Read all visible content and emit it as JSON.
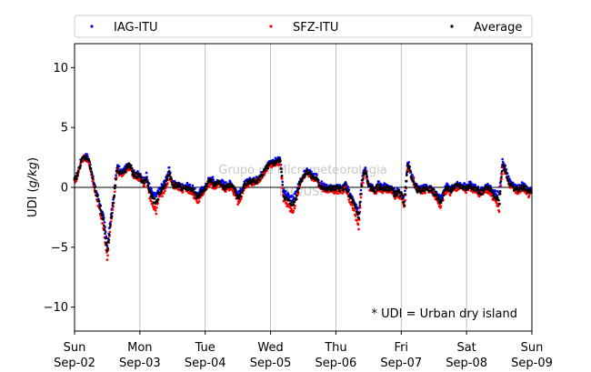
{
  "chart_data": {
    "type": "scatter",
    "xlabel": "",
    "ylabel": "UDI (g/kg)",
    "ylabel_parts": [
      "UDI (",
      "g/kg",
      ")"
    ],
    "xlim": [
      0,
      7
    ],
    "ylim": [
      -12,
      12
    ],
    "yticks": [
      -10,
      -5,
      0,
      5,
      10
    ],
    "xtick_labels": [
      [
        "Sun",
        "Sep-02"
      ],
      [
        "Mon",
        "Sep-03"
      ],
      [
        "Tue",
        "Sep-04"
      ],
      [
        "Wed",
        "Sep-05"
      ],
      [
        "Thu",
        "Sep-06"
      ],
      [
        "Fri",
        "Sep-07"
      ],
      [
        "Sat",
        "Sep-08"
      ],
      [
        "Sun",
        "Sep-09"
      ]
    ],
    "grid": "vertical",
    "zero_line": true,
    "legend_placement": "top",
    "annotation": "* UDI = Urban dry island",
    "watermark": [
      "Grupo de Micrometeorologia",
      "IAG/USP"
    ],
    "series": [
      {
        "name": "IAG-ITU",
        "color": "#0000ff",
        "x": [
          0.0,
          0.05,
          0.1,
          0.15,
          0.2,
          0.25,
          0.3,
          0.35,
          0.4,
          0.45,
          0.5,
          0.55,
          0.6,
          0.65,
          0.7,
          0.75,
          0.8,
          0.85,
          0.9,
          0.95,
          1.0,
          1.05,
          1.1,
          1.15,
          1.2,
          1.25,
          1.3,
          1.35,
          1.4,
          1.45,
          1.5,
          1.55,
          1.6,
          1.65,
          1.7,
          1.75,
          1.8,
          1.85,
          1.9,
          1.95,
          2.0,
          2.05,
          2.1,
          2.15,
          2.2,
          2.25,
          2.3,
          2.35,
          2.4,
          2.45,
          2.5,
          2.55,
          2.6,
          2.65,
          2.7,
          2.75,
          2.8,
          2.85,
          2.9,
          2.95,
          3.0,
          3.05,
          3.1,
          3.15,
          3.2,
          3.25,
          3.3,
          3.35,
          3.4,
          3.45,
          3.5,
          3.55,
          3.6,
          3.65,
          3.7,
          3.75,
          3.8,
          3.85,
          3.9,
          3.95,
          4.0,
          4.05,
          4.1,
          4.15,
          4.2,
          4.25,
          4.3,
          4.35,
          4.4,
          4.45,
          4.5,
          4.55,
          4.6,
          4.65,
          4.7,
          4.75,
          4.8,
          4.85,
          4.9,
          4.95,
          5.0,
          5.05,
          5.1,
          5.15,
          5.2,
          5.25,
          5.3,
          5.35,
          5.4,
          5.45,
          5.5,
          5.55,
          5.6,
          5.65,
          5.7,
          5.75,
          5.8,
          5.85,
          5.9,
          5.95,
          6.0,
          6.05,
          6.1,
          6.15,
          6.2,
          6.25,
          6.3,
          6.35,
          6.4,
          6.45,
          6.5,
          6.55,
          6.6,
          6.65,
          6.7,
          6.75,
          6.8,
          6.85,
          6.9,
          6.95,
          7.0
        ],
        "y": [
          0.6,
          1.2,
          2.3,
          2.6,
          2.6,
          1.7,
          0.2,
          -0.6,
          -1.6,
          -2.7,
          -4.8,
          -2.8,
          -0.6,
          1.8,
          1.4,
          1.3,
          1.8,
          2.0,
          1.2,
          1.2,
          1.0,
          0.6,
          1.0,
          0.0,
          -0.6,
          -0.7,
          -0.2,
          0.2,
          0.7,
          1.6,
          0.3,
          0.3,
          0.2,
          0.1,
          0.2,
          0.1,
          0.0,
          -0.4,
          -0.6,
          -0.1,
          0.0,
          0.6,
          0.8,
          0.4,
          0.5,
          0.5,
          0.2,
          0.4,
          0.3,
          0.0,
          -0.6,
          -0.3,
          0.3,
          0.5,
          0.6,
          0.6,
          0.7,
          1.0,
          1.5,
          1.9,
          2.1,
          2.2,
          2.4,
          2.4,
          -0.4,
          -0.6,
          -0.9,
          -0.9,
          -0.3,
          0.6,
          1.0,
          1.4,
          1.3,
          0.9,
          0.9,
          0.4,
          0.2,
          0.0,
          0.0,
          0.0,
          0.0,
          0.0,
          0.0,
          0.3,
          -0.4,
          -0.7,
          -1.3,
          -2.0,
          0.8,
          1.6,
          0.3,
          0.1,
          -0.2,
          0.3,
          0.0,
          0.2,
          0.0,
          0.0,
          -0.4,
          -0.2,
          -0.5,
          -1.0,
          2.2,
          1.3,
          0.5,
          0.0,
          -0.1,
          0.0,
          0.1,
          0.0,
          -0.3,
          -0.6,
          -0.9,
          -0.3,
          0.1,
          -0.2,
          0.1,
          0.2,
          0.3,
          0.2,
          0.0,
          0.3,
          0.1,
          0.0,
          -0.2,
          -0.2,
          0.2,
          0.0,
          -0.3,
          -0.5,
          -0.5,
          2.2,
          1.5,
          0.6,
          0.2,
          0.0,
          0.0,
          0.2,
          0.0,
          -0.3,
          -0.2
        ]
      },
      {
        "name": "SFZ-ITU",
        "color": "#ff0000",
        "x": [
          0.0,
          0.05,
          0.1,
          0.15,
          0.2,
          0.25,
          0.3,
          0.35,
          0.4,
          0.45,
          0.5,
          0.55,
          0.6,
          0.65,
          0.7,
          0.75,
          0.8,
          0.85,
          0.9,
          0.95,
          1.0,
          1.05,
          1.1,
          1.15,
          1.2,
          1.25,
          1.3,
          1.35,
          1.4,
          1.45,
          1.5,
          1.55,
          1.6,
          1.65,
          1.7,
          1.75,
          1.8,
          1.85,
          1.9,
          1.95,
          2.0,
          2.05,
          2.1,
          2.15,
          2.2,
          2.25,
          2.3,
          2.35,
          2.4,
          2.45,
          2.5,
          2.55,
          2.6,
          2.65,
          2.7,
          2.75,
          2.8,
          2.85,
          2.9,
          2.95,
          3.0,
          3.05,
          3.1,
          3.15,
          3.2,
          3.25,
          3.3,
          3.35,
          3.4,
          3.45,
          3.5,
          3.55,
          3.6,
          3.65,
          3.7,
          3.75,
          3.8,
          3.85,
          3.9,
          3.95,
          4.0,
          4.05,
          4.1,
          4.15,
          4.2,
          4.25,
          4.3,
          4.35,
          4.4,
          4.45,
          4.5,
          4.55,
          4.6,
          4.65,
          4.7,
          4.75,
          4.8,
          4.85,
          4.9,
          4.95,
          5.0,
          5.05,
          5.1,
          5.15,
          5.2,
          5.25,
          5.3,
          5.35,
          5.4,
          5.45,
          5.5,
          5.55,
          5.6,
          5.65,
          5.7,
          5.75,
          5.8,
          5.85,
          5.9,
          5.95,
          6.0,
          6.05,
          6.1,
          6.15,
          6.2,
          6.25,
          6.3,
          6.35,
          6.4,
          6.45,
          6.5,
          6.55,
          6.6,
          6.65,
          6.7,
          6.75,
          6.8,
          6.85,
          6.9,
          6.95,
          7.0
        ],
        "y": [
          0.4,
          1.0,
          2.2,
          2.5,
          2.3,
          1.4,
          -0.1,
          -1.2,
          -2.2,
          -3.6,
          -6.0,
          -3.4,
          -1.2,
          1.4,
          1.1,
          1.1,
          1.5,
          1.7,
          1.0,
          0.9,
          0.7,
          0.2,
          0.5,
          -0.7,
          -1.5,
          -2.0,
          -0.7,
          -0.5,
          0.1,
          1.0,
          0.1,
          0.1,
          0.0,
          -0.2,
          -0.2,
          -0.3,
          -0.4,
          -1.0,
          -1.1,
          -0.5,
          -0.3,
          0.3,
          0.2,
          0.0,
          0.2,
          0.1,
          -0.2,
          0.0,
          -0.1,
          -0.5,
          -1.2,
          -0.8,
          0.0,
          0.3,
          0.4,
          0.4,
          0.5,
          0.8,
          1.2,
          1.6,
          1.8,
          1.9,
          2.0,
          2.0,
          -1.0,
          -1.4,
          -1.8,
          -1.9,
          -0.9,
          0.3,
          0.8,
          1.2,
          1.1,
          0.7,
          0.6,
          0.1,
          -0.1,
          -0.3,
          -0.2,
          -0.3,
          -0.3,
          -0.3,
          -0.3,
          -0.1,
          -1.1,
          -1.6,
          -2.4,
          -3.4,
          0.2,
          1.3,
          0.0,
          -0.2,
          -0.5,
          -0.1,
          -0.3,
          -0.1,
          -0.3,
          -0.3,
          -0.8,
          -0.6,
          -0.8,
          -1.6,
          1.8,
          1.0,
          0.2,
          -0.3,
          -0.4,
          -0.3,
          -0.2,
          -0.3,
          -0.6,
          -1.0,
          -1.6,
          -0.7,
          -0.2,
          -0.5,
          -0.2,
          -0.1,
          0.0,
          -0.1,
          -0.3,
          -0.1,
          -0.2,
          -0.3,
          -0.6,
          -0.6,
          -0.2,
          -0.4,
          -0.8,
          -1.2,
          -1.9,
          1.8,
          1.2,
          0.3,
          -0.1,
          -0.3,
          -0.3,
          -0.1,
          -0.3,
          -0.6,
          -0.4
        ]
      },
      {
        "name": "Average",
        "color": "#000000",
        "x": [
          0.0,
          0.05,
          0.1,
          0.15,
          0.2,
          0.25,
          0.3,
          0.35,
          0.4,
          0.45,
          0.5,
          0.55,
          0.6,
          0.65,
          0.7,
          0.75,
          0.8,
          0.85,
          0.9,
          0.95,
          1.0,
          1.05,
          1.1,
          1.15,
          1.2,
          1.25,
          1.3,
          1.35,
          1.4,
          1.45,
          1.5,
          1.55,
          1.6,
          1.65,
          1.7,
          1.75,
          1.8,
          1.85,
          1.9,
          1.95,
          2.0,
          2.05,
          2.1,
          2.15,
          2.2,
          2.25,
          2.3,
          2.35,
          2.4,
          2.45,
          2.5,
          2.55,
          2.6,
          2.65,
          2.7,
          2.75,
          2.8,
          2.85,
          2.9,
          2.95,
          3.0,
          3.05,
          3.1,
          3.15,
          3.2,
          3.25,
          3.3,
          3.35,
          3.4,
          3.45,
          3.5,
          3.55,
          3.6,
          3.65,
          3.7,
          3.75,
          3.8,
          3.85,
          3.9,
          3.95,
          4.0,
          4.05,
          4.1,
          4.15,
          4.2,
          4.25,
          4.3,
          4.35,
          4.4,
          4.45,
          4.5,
          4.55,
          4.6,
          4.65,
          4.7,
          4.75,
          4.8,
          4.85,
          4.9,
          4.95,
          5.0,
          5.05,
          5.1,
          5.15,
          5.2,
          5.25,
          5.3,
          5.35,
          5.4,
          5.45,
          5.5,
          5.55,
          5.6,
          5.65,
          5.7,
          5.75,
          5.8,
          5.85,
          5.9,
          5.95,
          6.0,
          6.05,
          6.1,
          6.15,
          6.2,
          6.25,
          6.3,
          6.35,
          6.4,
          6.45,
          6.5,
          6.55,
          6.6,
          6.65,
          6.7,
          6.75,
          6.8,
          6.85,
          6.9,
          6.95,
          7.0
        ],
        "y": [
          0.5,
          1.1,
          2.2,
          2.5,
          2.5,
          1.6,
          0.1,
          -0.9,
          -1.9,
          -3.1,
          -5.3,
          -3.1,
          -0.9,
          1.6,
          1.2,
          1.2,
          1.6,
          1.9,
          1.1,
          1.0,
          0.9,
          0.4,
          0.7,
          -0.4,
          -1.0,
          -1.3,
          -0.4,
          -0.1,
          0.4,
          1.3,
          0.2,
          0.2,
          0.1,
          -0.1,
          0.0,
          -0.1,
          -0.2,
          -0.7,
          -0.8,
          -0.3,
          -0.1,
          0.5,
          0.5,
          0.2,
          0.4,
          0.3,
          0.0,
          0.2,
          0.1,
          -0.2,
          -0.9,
          -0.5,
          0.1,
          0.4,
          0.5,
          0.5,
          0.6,
          0.9,
          1.3,
          1.7,
          1.9,
          2.0,
          2.2,
          2.2,
          -0.7,
          -1.0,
          -1.3,
          -1.4,
          -0.6,
          0.4,
          0.9,
          1.3,
          1.2,
          0.8,
          0.7,
          0.2,
          0.0,
          -0.2,
          -0.1,
          -0.1,
          -0.1,
          -0.1,
          -0.1,
          0.1,
          -0.7,
          -1.1,
          -1.8,
          -2.6,
          0.5,
          1.4,
          0.1,
          -0.1,
          -0.3,
          0.1,
          -0.1,
          0.0,
          -0.1,
          -0.1,
          -0.6,
          -0.4,
          -0.6,
          -1.3,
          2.0,
          1.1,
          0.3,
          -0.2,
          -0.2,
          -0.1,
          -0.1,
          -0.1,
          -0.4,
          -0.8,
          -1.2,
          -0.5,
          0.0,
          -0.3,
          0.0,
          0.1,
          0.1,
          0.0,
          -0.1,
          0.1,
          0.0,
          -0.1,
          -0.4,
          -0.4,
          0.0,
          -0.2,
          -0.5,
          -0.8,
          -1.2,
          2.0,
          1.3,
          0.4,
          0.0,
          -0.1,
          -0.2,
          0.0,
          -0.1,
          -0.4,
          -0.3
        ]
      }
    ]
  }
}
